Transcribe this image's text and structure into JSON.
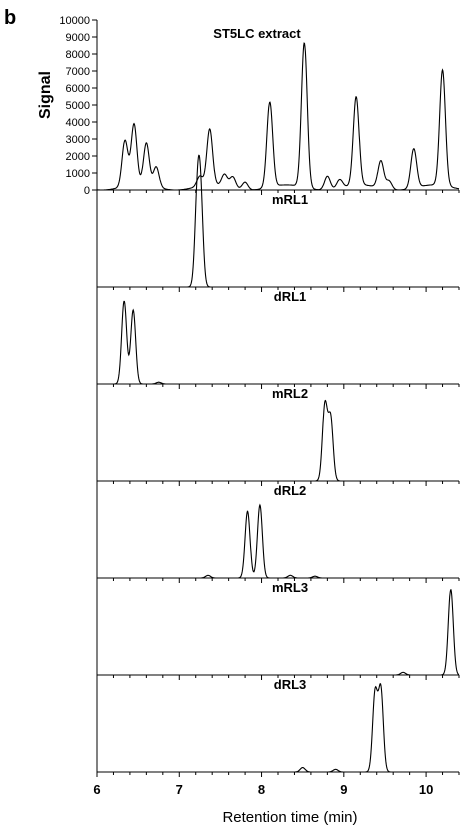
{
  "figure_label": "b",
  "colors": {
    "trace": "#000000",
    "axis": "#000000",
    "background": "#ffffff"
  },
  "chart_data": [
    {
      "type": "line",
      "title": "ST5LC extract",
      "ylabel": "Signal",
      "xlabel": "",
      "xlim": [
        6,
        10.4
      ],
      "ylim": [
        0,
        10000
      ],
      "yticks": [
        0,
        1000,
        2000,
        3000,
        4000,
        5000,
        6000,
        7000,
        8000,
        9000,
        10000
      ],
      "grid": false,
      "peaks": [
        {
          "rt": 6.34,
          "height": 2700
        },
        {
          "rt": 6.45,
          "height": 3600
        },
        {
          "rt": 6.6,
          "height": 2500
        },
        {
          "rt": 6.72,
          "height": 1200
        },
        {
          "rt": 7.25,
          "height": 600
        },
        {
          "rt": 7.37,
          "height": 3300
        },
        {
          "rt": 7.55,
          "height": 700
        },
        {
          "rt": 7.65,
          "height": 650
        },
        {
          "rt": 7.8,
          "height": 450
        },
        {
          "rt": 8.1,
          "height": 5000
        },
        {
          "rt": 8.52,
          "height": 8500
        },
        {
          "rt": 8.8,
          "height": 800
        },
        {
          "rt": 8.95,
          "height": 500
        },
        {
          "rt": 9.15,
          "height": 5200
        },
        {
          "rt": 9.45,
          "height": 1600
        },
        {
          "rt": 9.55,
          "height": 500
        },
        {
          "rt": 9.85,
          "height": 2300
        },
        {
          "rt": 10.2,
          "height": 6800
        }
      ]
    },
    {
      "type": "line",
      "title": "mRL1",
      "xlim": [
        6,
        10.4
      ],
      "peaks": [
        {
          "rt": 7.22,
          "height": 0.95
        },
        {
          "rt": 7.26,
          "height": 0.9
        }
      ]
    },
    {
      "type": "line",
      "title": "dRL1",
      "xlim": [
        6,
        10.4
      ],
      "peaks": [
        {
          "rt": 6.33,
          "height": 0.93
        },
        {
          "rt": 6.44,
          "height": 0.83
        },
        {
          "rt": 6.75,
          "height": 0.02
        }
      ]
    },
    {
      "type": "line",
      "title": "mRL2",
      "xlim": [
        6,
        10.4
      ],
      "peaks": [
        {
          "rt": 8.77,
          "height": 0.85
        },
        {
          "rt": 8.84,
          "height": 0.7
        }
      ]
    },
    {
      "type": "line",
      "title": "dRL2",
      "xlim": [
        6,
        10.4
      ],
      "peaks": [
        {
          "rt": 7.35,
          "height": 0.03
        },
        {
          "rt": 7.83,
          "height": 0.75
        },
        {
          "rt": 7.98,
          "height": 0.82
        },
        {
          "rt": 8.35,
          "height": 0.03
        },
        {
          "rt": 8.65,
          "height": 0.02
        }
      ]
    },
    {
      "type": "line",
      "title": "mRL3",
      "xlim": [
        6,
        10.4
      ],
      "peaks": [
        {
          "rt": 9.72,
          "height": 0.03
        },
        {
          "rt": 10.3,
          "height": 0.96
        }
      ]
    },
    {
      "type": "line",
      "title": "dRL3",
      "xlim": [
        6,
        10.4
      ],
      "xlabel": "Retention time (min)",
      "xticks": [
        6,
        7,
        8,
        9,
        10
      ],
      "peaks": [
        {
          "rt": 8.5,
          "height": 0.05
        },
        {
          "rt": 8.9,
          "height": 0.03
        },
        {
          "rt": 9.38,
          "height": 0.88
        },
        {
          "rt": 9.45,
          "height": 0.92
        }
      ]
    }
  ]
}
